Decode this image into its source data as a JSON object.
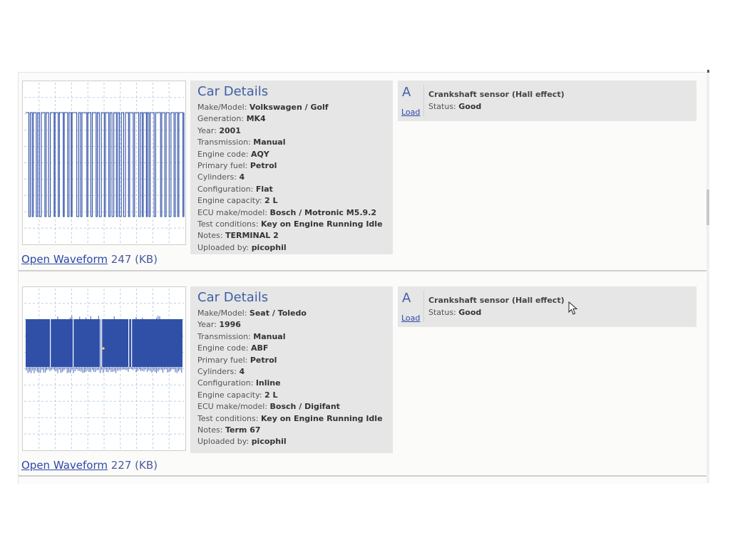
{
  "entries": [
    {
      "details_title": "Car Details",
      "details": [
        {
          "label": "Make/Model: ",
          "value": "Volkswagen / Golf"
        },
        {
          "label": "Generation: ",
          "value": "MK4"
        },
        {
          "label": "Year: ",
          "value": "2001"
        },
        {
          "label": "Transmission: ",
          "value": "Manual"
        },
        {
          "label": "Engine code: ",
          "value": "AQY"
        },
        {
          "label": "Primary fuel: ",
          "value": "Petrol"
        },
        {
          "label": "Cylinders: ",
          "value": "4"
        },
        {
          "label": "Configuration: ",
          "value": "Flat"
        },
        {
          "label": "Engine capacity: ",
          "value": "2 L"
        },
        {
          "label": "ECU make/model: ",
          "value": "Bosch / Motronic M5.9.2"
        },
        {
          "label": "Test conditions: ",
          "value": "Key on Engine Running Idle"
        },
        {
          "label": "Notes: ",
          "value": "TERMINAL 2"
        },
        {
          "label": "Uploaded by: ",
          "value": "picophil"
        }
      ],
      "open_label": "Open Waveform",
      "size": " 247 (KB)",
      "measurement": {
        "letter": "A",
        "load_label": "Load",
        "sensor": "Crankshaft sensor (Hall effect)",
        "status_label": "Status: ",
        "status_value": "Good"
      },
      "waveform_color": "#2f4fa5"
    },
    {
      "details_title": "Car Details",
      "details": [
        {
          "label": "Make/Model: ",
          "value": "Seat / Toledo"
        },
        {
          "label": "Year: ",
          "value": "1996"
        },
        {
          "label": "Transmission: ",
          "value": "Manual"
        },
        {
          "label": "Engine code: ",
          "value": "ABF"
        },
        {
          "label": "Primary fuel: ",
          "value": "Petrol"
        },
        {
          "label": "Cylinders: ",
          "value": "4"
        },
        {
          "label": "Configuration: ",
          "value": "Inline"
        },
        {
          "label": "Engine capacity: ",
          "value": "2 L"
        },
        {
          "label": "ECU make/model: ",
          "value": "Bosch / Digifant"
        },
        {
          "label": "Test conditions: ",
          "value": "Key on Engine Running Idle"
        },
        {
          "label": "Notes: ",
          "value": "Term 67"
        },
        {
          "label": "Uploaded by: ",
          "value": "picophil"
        }
      ],
      "open_label": "Open Waveform",
      "size": " 227 (KB)",
      "measurement": {
        "letter": "A",
        "load_label": "Load",
        "sensor": "Crankshaft sensor (Hall effect)",
        "status_label": "Status: ",
        "status_value": "Good"
      },
      "waveform_color": "#3050a8"
    }
  ],
  "icons": {
    "cursor": "mouse-pointer-icon"
  }
}
